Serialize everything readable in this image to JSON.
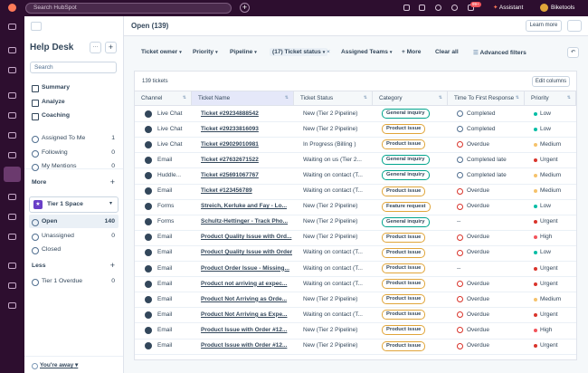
{
  "topbar": {
    "search_placeholder": "Search HubSpot",
    "notification_badge": "99+",
    "assistant": "Assistant",
    "account": "Biketools"
  },
  "sidebar": {
    "title": "Help Desk",
    "search_placeholder": "Search",
    "nav": [
      "Summary",
      "Analyze",
      "Coaching"
    ],
    "views": [
      {
        "label": "Assigned To Me",
        "count": 1
      },
      {
        "label": "Following",
        "count": 0
      },
      {
        "label": "My Mentions",
        "count": 0
      }
    ],
    "more": "More",
    "space": "Tier 1 Space",
    "space_views": [
      {
        "label": "Open",
        "count": 140
      },
      {
        "label": "Unassigned",
        "count": 0
      },
      {
        "label": "Closed"
      }
    ],
    "less": "Less",
    "less_views": [
      {
        "label": "Tier 1 Overdue",
        "count": 0
      }
    ],
    "status": "You're away"
  },
  "main": {
    "title": "Open (139)",
    "learn_more": "Learn more",
    "filters": [
      "Ticket owner",
      "Priority",
      "Pipeline",
      "(17) Ticket status",
      "Assigned Teams",
      "+ More"
    ],
    "clear_all": "Clear all",
    "advanced_filters": "Advanced filters"
  },
  "table": {
    "count_label": "139 tickets",
    "edit_columns": "Edit columns",
    "columns": [
      "Channel",
      "Ticket Name",
      "Ticket Status",
      "Category",
      "Time To First Response",
      "Priority"
    ],
    "rows": [
      {
        "channel": "Live Chat",
        "name": "Ticket #29234888542",
        "status": "New (Tier 2 Pipeline)",
        "category": "General inquiry",
        "category_color": "#00a38d",
        "ttfr": "Completed",
        "ttfr_color": "#516f90",
        "priority": "Low",
        "priority_color": "#00bda5"
      },
      {
        "channel": "Live Chat",
        "name": "Ticket #29233816093",
        "status": "New (Tier 2 Pipeline)",
        "category": "Product issue",
        "category_color": "#e0a53a",
        "ttfr": "Completed",
        "ttfr_color": "#516f90",
        "priority": "Low",
        "priority_color": "#00bda5"
      },
      {
        "channel": "Live Chat",
        "name": "Ticket #29029010981",
        "status": "In Progress (Billing )",
        "category": "Product issue",
        "category_color": "#e0a53a",
        "ttfr": "Overdue",
        "ttfr_color": "#d9342b",
        "priority": "Medium",
        "priority_color": "#f5c26b"
      },
      {
        "channel": "Email",
        "name": "Ticket #27632671522",
        "status": "Waiting on us (Tier 2...",
        "category": "General inquiry",
        "category_color": "#00a38d",
        "ttfr": "Completed late",
        "ttfr_color": "#516f90",
        "priority": "Urgent",
        "priority_color": "#d9342b"
      },
      {
        "channel": "Huddle...",
        "name": "Ticket #25691067767",
        "status": "Waiting on contact (T...",
        "category": "General inquiry",
        "category_color": "#00a38d",
        "ttfr": "Completed late",
        "ttfr_color": "#516f90",
        "priority": "Medium",
        "priority_color": "#f5c26b"
      },
      {
        "channel": "Email",
        "name": "Ticket #123456789",
        "status": "Waiting on contact (T...",
        "category": "Product issue",
        "category_color": "#e0a53a",
        "ttfr": "Overdue",
        "ttfr_color": "#d9342b",
        "priority": "Medium",
        "priority_color": "#f5c26b"
      },
      {
        "channel": "Forms",
        "name": "Streich, Kerluke and Fay - Lo...",
        "status": "New (Tier 2 Pipeline)",
        "category": "Feature request",
        "category_color": "#e0a53a",
        "ttfr": "Overdue",
        "ttfr_color": "#d9342b",
        "priority": "Low",
        "priority_color": "#00bda5"
      },
      {
        "channel": "Forms",
        "name": "Schultz-Hettinger - Track Pho...",
        "status": "New (Tier 2 Pipeline)",
        "category": "General inquiry",
        "category_color": "#00a38d",
        "ttfr": "--",
        "priority": "Urgent",
        "priority_color": "#d9342b"
      },
      {
        "channel": "Email",
        "name": "Product Quality Issue with Ord...",
        "status": "New (Tier 2 Pipeline)",
        "category": "Product issue",
        "category_color": "#e0a53a",
        "ttfr": "Overdue",
        "ttfr_color": "#d9342b",
        "priority": "High",
        "priority_color": "#f2545b"
      },
      {
        "channel": "Email",
        "name": "Product Quality Issue with Order...",
        "status": "Waiting on contact (T...",
        "category": "Product issue",
        "category_color": "#e0a53a",
        "ttfr": "Overdue",
        "ttfr_color": "#d9342b",
        "priority": "Low",
        "priority_color": "#00bda5"
      },
      {
        "channel": "Email",
        "name": "Product Order Issue - Missing...",
        "status": "Waiting on contact (T...",
        "category": "Product issue",
        "category_color": "#e0a53a",
        "ttfr": "--",
        "priority": "Urgent",
        "priority_color": "#d9342b"
      },
      {
        "channel": "Email",
        "name": "Product not arriving at expec...",
        "status": "Waiting on contact (T...",
        "category": "Product issue",
        "category_color": "#e0a53a",
        "ttfr": "Overdue",
        "ttfr_color": "#d9342b",
        "priority": "Urgent",
        "priority_color": "#d9342b"
      },
      {
        "channel": "Email",
        "name": "Product Not Arriving as Orde...",
        "status": "New (Tier 2 Pipeline)",
        "category": "Product issue",
        "category_color": "#e0a53a",
        "ttfr": "Overdue",
        "ttfr_color": "#d9342b",
        "priority": "Medium",
        "priority_color": "#f5c26b"
      },
      {
        "channel": "Email",
        "name": "Product Not Arriving as Expe...",
        "status": "Waiting on contact (T...",
        "category": "Product issue",
        "category_color": "#e0a53a",
        "ttfr": "Overdue",
        "ttfr_color": "#d9342b",
        "priority": "Urgent",
        "priority_color": "#d9342b"
      },
      {
        "channel": "Email",
        "name": "Product Issue with Order #12...",
        "status": "New (Tier 2 Pipeline)",
        "category": "Product issue",
        "category_color": "#e0a53a",
        "ttfr": "Overdue",
        "ttfr_color": "#d9342b",
        "priority": "High",
        "priority_color": "#f2545b"
      },
      {
        "channel": "Email",
        "name": "Product Issue with Order #12...",
        "status": "New (Tier 2 Pipeline)",
        "category": "Product issue",
        "category_color": "#e0a53a",
        "ttfr": "Overdue",
        "ttfr_color": "#d9342b",
        "priority": "Urgent",
        "priority_color": "#d9342b"
      }
    ]
  }
}
